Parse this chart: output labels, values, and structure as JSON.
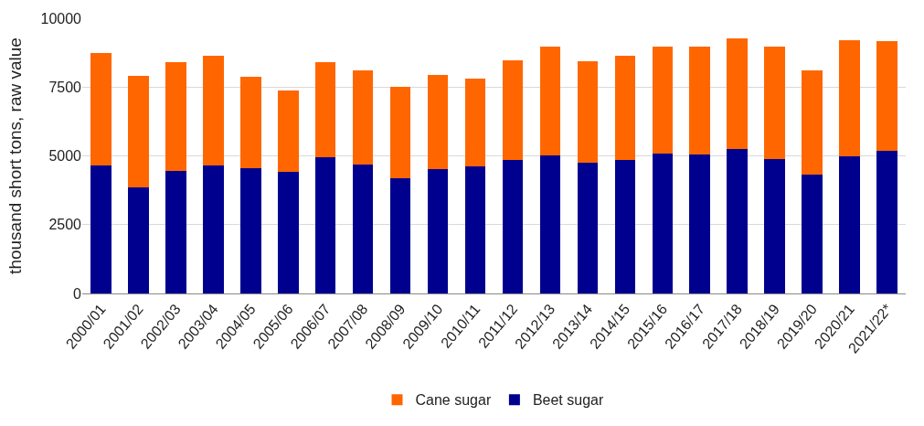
{
  "chart_data": {
    "type": "bar",
    "stacked": true,
    "ylabel": "thousand short tons, raw value",
    "categories": [
      "2000/01",
      "2001/02",
      "2002/03",
      "2003/04",
      "2004/05",
      "2005/06",
      "2006/07",
      "2007/08",
      "2008/09",
      "2009/10",
      "2010/11",
      "2011/12",
      "2012/13",
      "2013/14",
      "2014/15",
      "2015/16",
      "2016/17",
      "2017/18",
      "2018/19",
      "2019/20",
      "2020/21",
      "2021/22*"
    ],
    "series": [
      {
        "name": "Beet sugar",
        "color": "#00008f",
        "values": [
          4650,
          3860,
          4450,
          4650,
          4550,
          4420,
          4950,
          4690,
          4190,
          4520,
          4620,
          4850,
          5020,
          4750,
          4850,
          5080,
          5050,
          5250,
          4880,
          4320,
          4980,
          5180
        ]
      },
      {
        "name": "Cane sugar",
        "color": "#ff6600",
        "values": [
          4100,
          4060,
          3960,
          4000,
          3340,
          2970,
          3460,
          3430,
          3330,
          3430,
          3200,
          3630,
          3960,
          3700,
          3800,
          3900,
          3930,
          4020,
          4100,
          3770,
          4230,
          3990
        ]
      }
    ],
    "ylim": [
      0,
      10000
    ],
    "yticks": [
      0,
      2500,
      5000,
      7500,
      10000
    ],
    "grid": "y",
    "legend": "bottom"
  }
}
